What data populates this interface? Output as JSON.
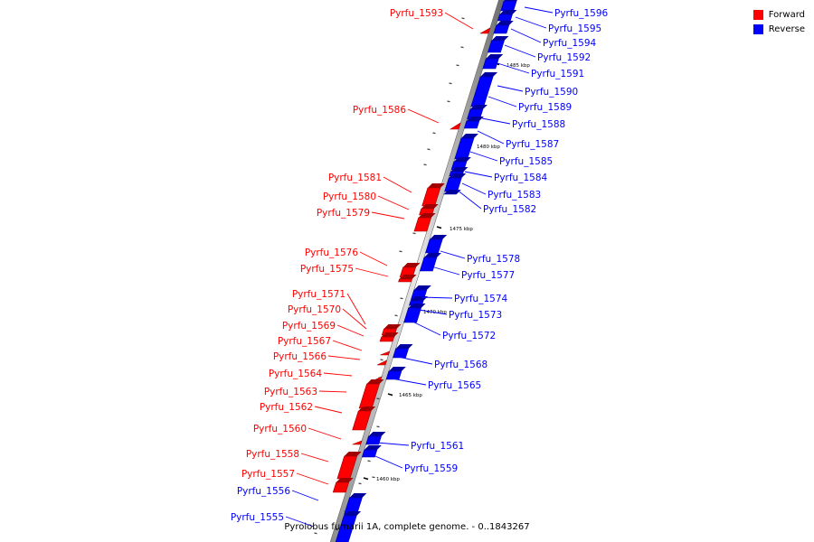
{
  "caption": "Pyrolobus fumarii 1A, complete genome. - 0..1843267",
  "legend": {
    "forward_label": "Forward",
    "forward_color": "#ff0000",
    "reverse_label": "Reverse",
    "reverse_color": "#0000ff"
  },
  "ticks": [
    "1485 kbp",
    "1480 kbp",
    "1475 kbp",
    "1470 kbp",
    "1465 kbp",
    "1460 kbp"
  ],
  "genes": [
    {
      "label": "Pyrfu_1596",
      "strand": "reverse"
    },
    {
      "label": "Pyrfu_1595",
      "strand": "reverse"
    },
    {
      "label": "Pyrfu_1594",
      "strand": "reverse"
    },
    {
      "label": "Pyrfu_1593",
      "strand": "forward"
    },
    {
      "label": "Pyrfu_1592",
      "strand": "reverse"
    },
    {
      "label": "Pyrfu_1591",
      "strand": "reverse"
    },
    {
      "label": "Pyrfu_1590",
      "strand": "reverse"
    },
    {
      "label": "Pyrfu_1589",
      "strand": "reverse"
    },
    {
      "label": "Pyrfu_1588",
      "strand": "reverse"
    },
    {
      "label": "Pyrfu_1586",
      "strand": "forward"
    },
    {
      "label": "Pyrfu_1587",
      "strand": "reverse"
    },
    {
      "label": "Pyrfu_1585",
      "strand": "reverse"
    },
    {
      "label": "Pyrfu_1584",
      "strand": "reverse"
    },
    {
      "label": "Pyrfu_1583",
      "strand": "reverse"
    },
    {
      "label": "Pyrfu_1582",
      "strand": "reverse"
    },
    {
      "label": "Pyrfu_1581",
      "strand": "forward"
    },
    {
      "label": "Pyrfu_1580",
      "strand": "forward"
    },
    {
      "label": "Pyrfu_1579",
      "strand": "forward"
    },
    {
      "label": "Pyrfu_1578",
      "strand": "reverse"
    },
    {
      "label": "Pyrfu_1577",
      "strand": "reverse"
    },
    {
      "label": "Pyrfu_1576",
      "strand": "forward"
    },
    {
      "label": "Pyrfu_1575",
      "strand": "forward"
    },
    {
      "label": "Pyrfu_1574",
      "strand": "reverse"
    },
    {
      "label": "Pyrfu_1573",
      "strand": "reverse"
    },
    {
      "label": "Pyrfu_1572",
      "strand": "reverse"
    },
    {
      "label": "Pyrfu_1571",
      "strand": "forward"
    },
    {
      "label": "Pyrfu_1570",
      "strand": "forward"
    },
    {
      "label": "Pyrfu_1569",
      "strand": "forward"
    },
    {
      "label": "Pyrfu_1567",
      "strand": "forward"
    },
    {
      "label": "Pyrfu_1566",
      "strand": "forward"
    },
    {
      "label": "Pyrfu_1568",
      "strand": "reverse"
    },
    {
      "label": "Pyrfu_1565",
      "strand": "reverse"
    },
    {
      "label": "Pyrfu_1564",
      "strand": "forward"
    },
    {
      "label": "Pyrfu_1563",
      "strand": "forward"
    },
    {
      "label": "Pyrfu_1562",
      "strand": "forward"
    },
    {
      "label": "Pyrfu_1560",
      "strand": "forward"
    },
    {
      "label": "Pyrfu_1561",
      "strand": "reverse"
    },
    {
      "label": "Pyrfu_1559",
      "strand": "reverse"
    },
    {
      "label": "Pyrfu_1558",
      "strand": "forward"
    },
    {
      "label": "Pyrfu_1557",
      "strand": "forward"
    },
    {
      "label": "Pyrfu_1556",
      "strand": "reverse"
    },
    {
      "label": "Pyrfu_1555",
      "strand": "reverse"
    }
  ]
}
